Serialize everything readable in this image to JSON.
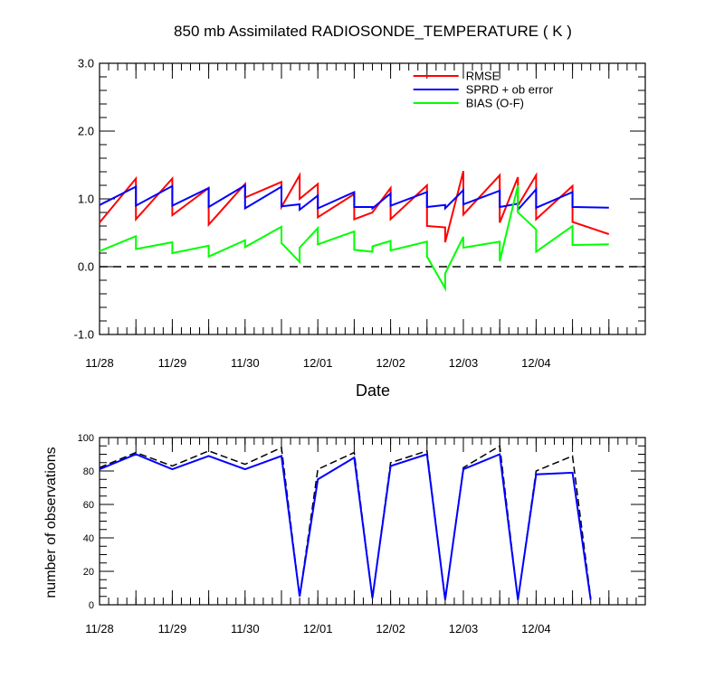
{
  "chart_data": [
    {
      "type": "line",
      "title": "850 mb Assimilated RADIOSONDE_TEMPERATURE ( K )",
      "xlabel": "Date",
      "ylabel": "",
      "ylim": [
        -1.0,
        3.0
      ],
      "xlim": [
        0,
        7.5
      ],
      "yticks": [
        -1.0,
        0.0,
        1.0,
        2.0,
        3.0
      ],
      "ytick_labels": [
        "-1.0",
        "0.0",
        "1.0",
        "2.0",
        "3.0"
      ],
      "xticks": [
        0,
        1,
        2,
        3,
        4,
        5,
        6,
        7
      ],
      "xtick_labels": [
        "11/28",
        "11/29",
        "11/30",
        "12/01",
        "12/02",
        "12/03",
        "12/04"
      ],
      "xtick_label_positions": [
        0,
        1,
        2,
        3,
        4,
        5,
        6
      ],
      "reference_line": {
        "y": 0.0,
        "style": "dashed"
      },
      "legend": {
        "placement": "top-right",
        "entries": [
          {
            "name": "RMSE",
            "color": "#ff0000"
          },
          {
            "name": "SPRD + ob error",
            "color": "#0000ff"
          },
          {
            "name": "BIAS (O-F)",
            "color": "#00ff00"
          }
        ]
      },
      "series": [
        {
          "name": "RMSE",
          "color": "#ff0000",
          "x": [
            0,
            0.5,
            0.5,
            1,
            1,
            1.5,
            1.5,
            2,
            2,
            2.5,
            2.5,
            2.75,
            2.75,
            3,
            3,
            3.5,
            3.5,
            3.75,
            3.75,
            4,
            4,
            4.5,
            4.5,
            4.75,
            4.75,
            5,
            5,
            5.5,
            5.5,
            5.75,
            5.75,
            6,
            6,
            6.5,
            6.5,
            7
          ],
          "values": [
            0.65,
            1.3,
            0.7,
            1.3,
            0.76,
            1.16,
            0.62,
            1.22,
            1.02,
            1.25,
            0.88,
            1.35,
            1.0,
            1.22,
            0.73,
            1.07,
            0.7,
            0.8,
            0.8,
            1.16,
            0.7,
            1.2,
            0.6,
            0.58,
            0.36,
            1.41,
            0.77,
            1.35,
            0.65,
            1.32,
            0.9,
            1.35,
            0.7,
            1.19,
            0.66,
            0.48
          ]
        },
        {
          "name": "SPRD + ob error",
          "color": "#0000ff",
          "x": [
            0,
            0.5,
            0.5,
            1,
            1,
            1.5,
            1.5,
            2,
            2,
            2.5,
            2.5,
            2.75,
            2.75,
            3,
            3,
            3.5,
            3.5,
            3.75,
            3.75,
            4,
            4,
            4.5,
            4.5,
            4.75,
            4.75,
            5,
            5,
            5.5,
            5.5,
            5.75,
            5.75,
            6,
            6,
            6.5,
            6.5,
            7
          ],
          "values": [
            0.91,
            1.18,
            0.9,
            1.19,
            0.9,
            1.16,
            0.88,
            1.2,
            0.86,
            1.18,
            0.89,
            0.92,
            0.84,
            1.05,
            0.86,
            1.1,
            0.88,
            0.88,
            0.86,
            1.08,
            0.9,
            1.1,
            0.88,
            0.91,
            0.86,
            1.13,
            0.92,
            1.12,
            0.88,
            0.93,
            0.84,
            1.14,
            0.87,
            1.1,
            0.88,
            0.87
          ]
        },
        {
          "name": "BIAS (O-F)",
          "color": "#00ff00",
          "x": [
            0,
            0.5,
            0.5,
            1,
            1,
            1.5,
            1.5,
            2,
            2,
            2.5,
            2.5,
            2.75,
            2.75,
            3,
            3,
            3.5,
            3.5,
            3.75,
            3.75,
            4,
            4,
            4.5,
            4.5,
            4.75,
            4.75,
            5,
            5,
            5.5,
            5.5,
            5.75,
            5.75,
            6,
            6,
            6.5,
            6.5,
            7
          ],
          "values": [
            0.23,
            0.45,
            0.26,
            0.36,
            0.2,
            0.31,
            0.15,
            0.39,
            0.29,
            0.59,
            0.35,
            0.07,
            0.28,
            0.57,
            0.33,
            0.52,
            0.25,
            0.22,
            0.3,
            0.38,
            0.24,
            0.37,
            0.15,
            -0.32,
            -0.1,
            0.44,
            0.28,
            0.37,
            0.08,
            1.2,
            0.8,
            0.55,
            0.22,
            0.6,
            0.32,
            0.33
          ]
        }
      ]
    },
    {
      "type": "line",
      "title": "",
      "xlabel": "",
      "ylabel": "number of observations",
      "ylim": [
        0,
        100
      ],
      "xlim": [
        0,
        7.5
      ],
      "yticks": [
        0,
        20,
        40,
        60,
        80,
        100
      ],
      "ytick_labels": [
        "0",
        "20",
        "40",
        "60",
        "80",
        "100"
      ],
      "xticks": [
        0,
        1,
        2,
        3,
        4,
        5,
        6,
        7
      ],
      "xtick_labels": [
        "11/28",
        "11/29",
        "11/30",
        "12/01",
        "12/02",
        "12/03",
        "12/04"
      ],
      "xtick_label_positions": [
        0,
        1,
        2,
        3,
        4,
        5,
        6
      ],
      "series": [
        {
          "name": "",
          "style": "dashed",
          "color": "#000000",
          "x": [
            0,
            0.5,
            1,
            1.5,
            2,
            2.5,
            2.75,
            3,
            3.5,
            3.75,
            4,
            4.5,
            4.75,
            5,
            5.5,
            5.75,
            6,
            6.5,
            6.75
          ],
          "values": [
            82,
            91,
            83,
            92,
            84,
            94,
            5,
            81,
            91,
            4,
            85,
            92,
            3,
            82,
            95,
            3,
            80,
            89,
            4
          ]
        },
        {
          "name": "",
          "style": "solid",
          "color": "#0000ff",
          "x": [
            0,
            0.5,
            1,
            1.5,
            2,
            2.5,
            2.75,
            3,
            3.5,
            3.75,
            4,
            4.5,
            4.75,
            5,
            5.5,
            5.75,
            6,
            6.5,
            6.75
          ],
          "values": [
            81,
            90,
            81,
            89,
            81,
            89,
            5,
            75,
            88,
            4,
            83,
            90,
            3,
            81,
            90,
            3,
            78,
            79,
            3
          ]
        }
      ]
    }
  ]
}
